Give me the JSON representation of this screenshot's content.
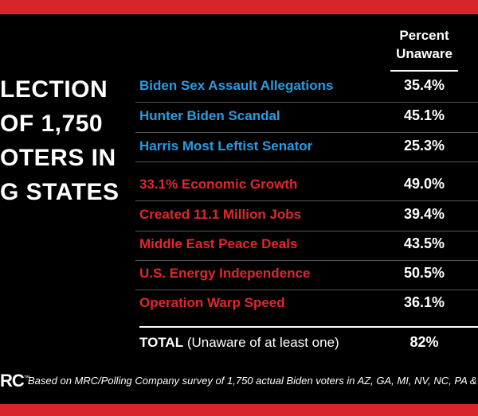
{
  "title": {
    "lines": [
      "LECTION",
      "OF 1,750",
      "OTERS IN",
      "G STATES"
    ]
  },
  "table": {
    "header": [
      "Percent",
      "Unaware"
    ],
    "rows": [
      {
        "label": "Biden Sex Assault Allegations",
        "value": "35.4%",
        "group": "blue"
      },
      {
        "label": "Hunter Biden Scandal",
        "value": "45.1%",
        "group": "blue"
      },
      {
        "label": "Harris Most Leftist Senator",
        "value": "25.3%",
        "group": "blue"
      },
      {
        "label": "33.1% Economic Growth",
        "value": "49.0%",
        "group": "red"
      },
      {
        "label": "Created 11.1 Million Jobs",
        "value": "39.4%",
        "group": "red"
      },
      {
        "label": "Middle East Peace Deals",
        "value": "43.5%",
        "group": "red"
      },
      {
        "label": "U.S. Energy Independence",
        "value": "50.5%",
        "group": "red"
      },
      {
        "label": "Operation Warp Speed",
        "value": "36.1%",
        "group": "red"
      }
    ],
    "total": {
      "label": "TOTAL",
      "note": "(Unaware of at least one)",
      "value": "82%"
    }
  },
  "footer": {
    "logo": "RC",
    "trademark": "™",
    "source": "Based on MRC/Polling Company survey of 1,750 actual Biden voters in AZ, GA, MI, NV, NC, PA &"
  }
}
